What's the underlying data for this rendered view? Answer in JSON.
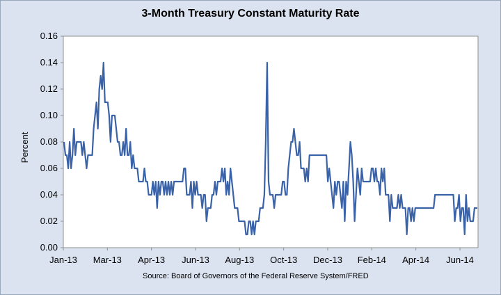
{
  "chart_data": {
    "type": "line",
    "title": "3-Month Treasury Constant Maturity Rate",
    "xlabel": "",
    "ylabel": "Percent",
    "ylim": [
      0,
      0.16
    ],
    "yticks": [
      0.0,
      0.02,
      0.04,
      0.06,
      0.08,
      0.1,
      0.12,
      0.14,
      0.16
    ],
    "ytick_labels": [
      "0.00",
      "0.02",
      "0.04",
      "0.06",
      "0.08",
      "0.10",
      "0.12",
      "0.14",
      "0.16"
    ],
    "xtick_labels": [
      "Jan-13",
      "Mar-13",
      "Apr-13",
      "Jun-13",
      "Aug-13",
      "Oct-13",
      "Dec-13",
      "Feb-14",
      "Apr-14",
      "Jun-14"
    ],
    "grid": false,
    "line_color": "#3a62a8",
    "source": "Source: Board of Governors of the Federal Reserve System/FRED",
    "series": [
      {
        "name": "3-Month Treasury Constant Maturity Rate",
        "values": [
          0.08,
          0.07,
          0.07,
          0.06,
          0.08,
          0.06,
          0.07,
          0.09,
          0.07,
          0.08,
          0.08,
          0.08,
          0.08,
          0.07,
          0.08,
          0.07,
          0.06,
          0.07,
          0.07,
          0.07,
          0.07,
          0.09,
          0.1,
          0.11,
          0.09,
          0.12,
          0.13,
          0.12,
          0.14,
          0.11,
          0.11,
          0.11,
          0.1,
          0.08,
          0.1,
          0.1,
          0.1,
          0.09,
          0.08,
          0.08,
          0.07,
          0.07,
          0.08,
          0.07,
          0.09,
          0.07,
          0.07,
          0.08,
          0.06,
          0.07,
          0.06,
          0.06,
          0.06,
          0.05,
          0.05,
          0.05,
          0.05,
          0.06,
          0.05,
          0.05,
          0.04,
          0.04,
          0.04,
          0.05,
          0.04,
          0.05,
          0.03,
          0.05,
          0.04,
          0.05,
          0.05,
          0.04,
          0.05,
          0.04,
          0.05,
          0.04,
          0.05,
          0.04,
          0.05,
          0.05,
          0.05,
          0.05,
          0.05,
          0.05,
          0.05,
          0.06,
          0.06,
          0.04,
          0.04,
          0.04,
          0.05,
          0.03,
          0.05,
          0.04,
          0.05,
          0.04,
          0.04,
          0.04,
          0.03,
          0.04,
          0.04,
          0.02,
          0.03,
          0.03,
          0.03,
          0.04,
          0.04,
          0.05,
          0.04,
          0.05,
          0.05,
          0.05,
          0.06,
          0.05,
          0.06,
          0.04,
          0.05,
          0.04,
          0.06,
          0.05,
          0.04,
          0.03,
          0.03,
          0.03,
          0.02,
          0.02,
          0.02,
          0.02,
          0.02,
          0.01,
          0.01,
          0.02,
          0.02,
          0.01,
          0.02,
          0.01,
          0.02,
          0.02,
          0.02,
          0.03,
          0.03,
          0.03,
          0.04,
          0.08,
          0.14,
          0.05,
          0.04,
          0.04,
          0.04,
          0.03,
          0.04,
          0.04,
          0.04,
          0.04,
          0.04,
          0.05,
          0.05,
          0.04,
          0.04,
          0.06,
          0.07,
          0.08,
          0.08,
          0.09,
          0.08,
          0.07,
          0.07,
          0.08,
          0.06,
          0.06,
          0.06,
          0.05,
          0.06,
          0.05,
          0.07,
          0.07,
          0.07,
          0.07,
          0.07,
          0.07,
          0.07,
          0.07,
          0.07,
          0.07,
          0.07,
          0.07,
          0.07,
          0.05,
          0.06,
          0.05,
          0.04,
          0.03,
          0.05,
          0.04,
          0.05,
          0.05,
          0.04,
          0.03,
          0.05,
          0.02,
          0.05,
          0.04,
          0.06,
          0.08,
          0.07,
          0.05,
          0.02,
          0.04,
          0.06,
          0.05,
          0.04,
          0.06,
          0.05,
          0.05,
          0.05,
          0.05,
          0.05,
          0.05,
          0.06,
          0.06,
          0.05,
          0.06,
          0.05,
          0.05,
          0.04,
          0.06,
          0.05,
          0.06,
          0.04,
          0.04,
          0.04,
          0.02,
          0.04,
          0.03,
          0.03,
          0.03,
          0.03,
          0.04,
          0.03,
          0.04,
          0.03,
          0.03,
          0.03,
          0.01,
          0.03,
          0.03,
          0.02,
          0.03,
          0.02,
          0.03,
          0.03,
          0.03,
          0.03,
          0.03,
          0.03,
          0.03,
          0.03,
          0.03,
          0.03,
          0.03,
          0.03,
          0.03,
          0.03,
          0.04,
          0.04,
          0.04,
          0.04,
          0.04,
          0.04,
          0.04,
          0.04,
          0.04,
          0.04,
          0.04,
          0.04,
          0.04,
          0.04,
          0.02,
          0.03,
          0.03,
          0.04,
          0.02,
          0.03,
          0.03,
          0.01,
          0.04,
          0.02,
          0.03,
          0.02,
          0.02,
          0.02,
          0.03,
          0.03,
          0.03
        ]
      }
    ]
  }
}
